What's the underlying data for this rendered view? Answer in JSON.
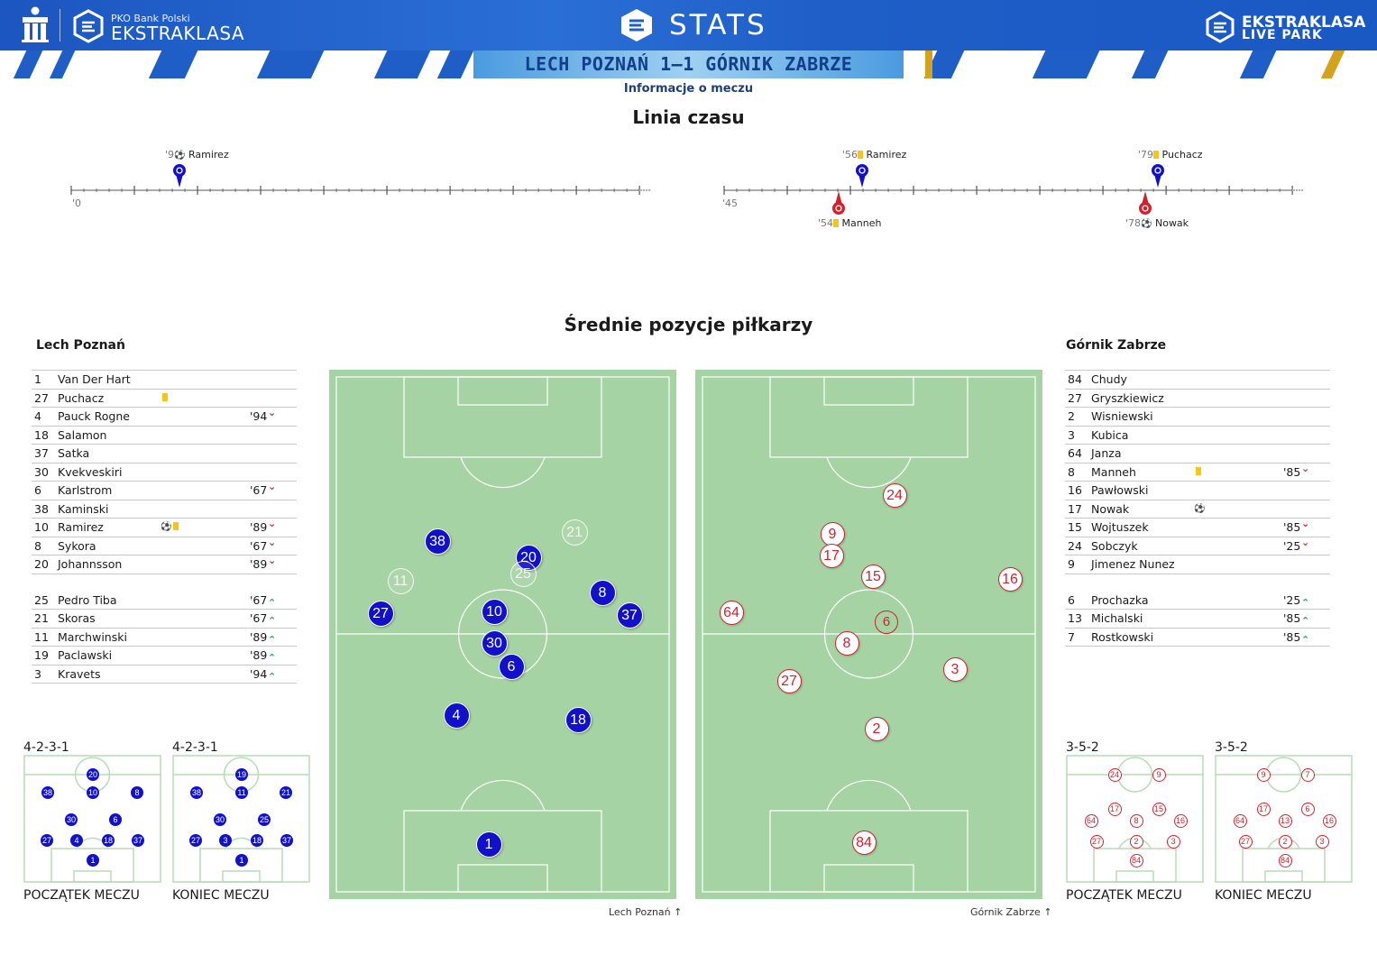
{
  "header": {
    "pko_text": "PKO Bank Polski",
    "league_name": "EKSTRAKLASA",
    "stats_title": "STATS",
    "live_line1": "EKSTRAKLASA",
    "live_line2": "LIVE PARK",
    "score_line": "LECH POZNAŃ 1–1 GÓRNIK ZABRZE",
    "info_link": "Informacje o meczu"
  },
  "colors": {
    "home": "#1111cc",
    "away": "#d3202b",
    "pitch": "#a6d3a3",
    "brand": "#1f5ec7",
    "yellow_card": "#f5c518"
  },
  "timeline": {
    "title": "Linia czasu",
    "first_half_start": "'0",
    "second_half_start": "'45",
    "events": [
      {
        "minute": "'9",
        "type": "goal",
        "player": "Ramirez",
        "team": "home"
      },
      {
        "minute": "'56",
        "type": "yellow-card",
        "player": "Ramirez",
        "team": "home"
      },
      {
        "minute": "'79",
        "type": "yellow-card",
        "player": "Puchacz",
        "team": "home"
      },
      {
        "minute": "'54",
        "type": "yellow-card",
        "player": "Manneh",
        "team": "away"
      },
      {
        "minute": "'78",
        "type": "goal",
        "player": "Nowak",
        "team": "away"
      }
    ]
  },
  "positions_title": "Średnie pozycje piłkarzy",
  "home": {
    "name": "Lech Poznań",
    "players": [
      {
        "num": "1",
        "name": "Van Der Hart",
        "card": "",
        "goal": "",
        "time": "",
        "dir": ""
      },
      {
        "num": "27",
        "name": "Puchacz",
        "card": "yellow",
        "goal": "",
        "time": "",
        "dir": ""
      },
      {
        "num": "4",
        "name": "Pauck Rogne",
        "card": "",
        "goal": "",
        "time": "'94",
        "dir": "down"
      },
      {
        "num": "18",
        "name": "Salamon",
        "card": "",
        "goal": "",
        "time": "",
        "dir": ""
      },
      {
        "num": "37",
        "name": "Satka",
        "card": "",
        "goal": "",
        "time": "",
        "dir": ""
      },
      {
        "num": "30",
        "name": "Kvekveskiri",
        "card": "",
        "goal": "",
        "time": "",
        "dir": ""
      },
      {
        "num": "6",
        "name": "Karlstrom",
        "card": "",
        "goal": "",
        "time": "'67",
        "dir": "down"
      },
      {
        "num": "38",
        "name": "Kaminski",
        "card": "",
        "goal": "",
        "time": "",
        "dir": ""
      },
      {
        "num": "10",
        "name": "Ramirez",
        "card": "yellow",
        "goal": "ball",
        "time": "'89",
        "dir": "down"
      },
      {
        "num": "8",
        "name": "Sykora",
        "card": "",
        "goal": "",
        "time": "'67",
        "dir": "down"
      },
      {
        "num": "20",
        "name": "Johannsson",
        "card": "",
        "goal": "",
        "time": "'89",
        "dir": "down"
      }
    ],
    "subs": [
      {
        "num": "25",
        "name": "Pedro Tiba",
        "time": "'67",
        "dir": "up"
      },
      {
        "num": "21",
        "name": "Skoras",
        "time": "'67",
        "dir": "up"
      },
      {
        "num": "11",
        "name": "Marchwinski",
        "time": "'89",
        "dir": "up"
      },
      {
        "num": "19",
        "name": "Paclawski",
        "time": "'89",
        "dir": "up"
      },
      {
        "num": "3",
        "name": "Kravets",
        "time": "'94",
        "dir": "up"
      }
    ],
    "formation_start": "4-2-3-1",
    "formation_end": "4-2-3-1",
    "start_caption": "POCZĄTEK MECZU",
    "end_caption": "KONIEC MECZU",
    "pitch_caption": "Lech Poznań"
  },
  "away": {
    "name": "Górnik Zabrze",
    "players": [
      {
        "num": "84",
        "name": "Chudy",
        "card": "",
        "goal": "",
        "time": "",
        "dir": ""
      },
      {
        "num": "27",
        "name": "Gryszkiewicz",
        "card": "",
        "goal": "",
        "time": "",
        "dir": ""
      },
      {
        "num": "2",
        "name": "Wisniewski",
        "card": "",
        "goal": "",
        "time": "",
        "dir": ""
      },
      {
        "num": "3",
        "name": "Kubica",
        "card": "",
        "goal": "",
        "time": "",
        "dir": ""
      },
      {
        "num": "64",
        "name": "Janza",
        "card": "",
        "goal": "",
        "time": "",
        "dir": ""
      },
      {
        "num": "8",
        "name": "Manneh",
        "card": "yellow",
        "goal": "",
        "time": "'85",
        "dir": "down"
      },
      {
        "num": "16",
        "name": "Pawłowski",
        "card": "",
        "goal": "",
        "time": "",
        "dir": ""
      },
      {
        "num": "17",
        "name": "Nowak",
        "card": "",
        "goal": "ball",
        "time": "",
        "dir": ""
      },
      {
        "num": "15",
        "name": "Wojtuszek",
        "card": "",
        "goal": "",
        "time": "'85",
        "dir": "down"
      },
      {
        "num": "24",
        "name": "Sobczyk",
        "card": "",
        "goal": "",
        "time": "'25",
        "dir": "down"
      },
      {
        "num": "9",
        "name": "Jimenez Nunez",
        "card": "",
        "goal": "",
        "time": "",
        "dir": ""
      }
    ],
    "subs": [
      {
        "num": "6",
        "name": "Prochazka",
        "time": "'25",
        "dir": "up"
      },
      {
        "num": "13",
        "name": "Michalski",
        "time": "'85",
        "dir": "up"
      },
      {
        "num": "7",
        "name": "Rostkowski",
        "time": "'85",
        "dir": "up"
      }
    ],
    "formation_start": "3-5-2",
    "formation_end": "3-5-2",
    "start_caption": "POCZĄTEK MECZU",
    "end_caption": "KONIEC MECZU",
    "pitch_caption": "Górnik Zabrze"
  },
  "icons": {
    "goal": "soccer-ball-icon",
    "yellow_card": "yellow-card-icon",
    "sub_out": "chevron-down-icon",
    "sub_in": "chevron-up-icon",
    "attack_direction": "arrow-up-icon"
  }
}
